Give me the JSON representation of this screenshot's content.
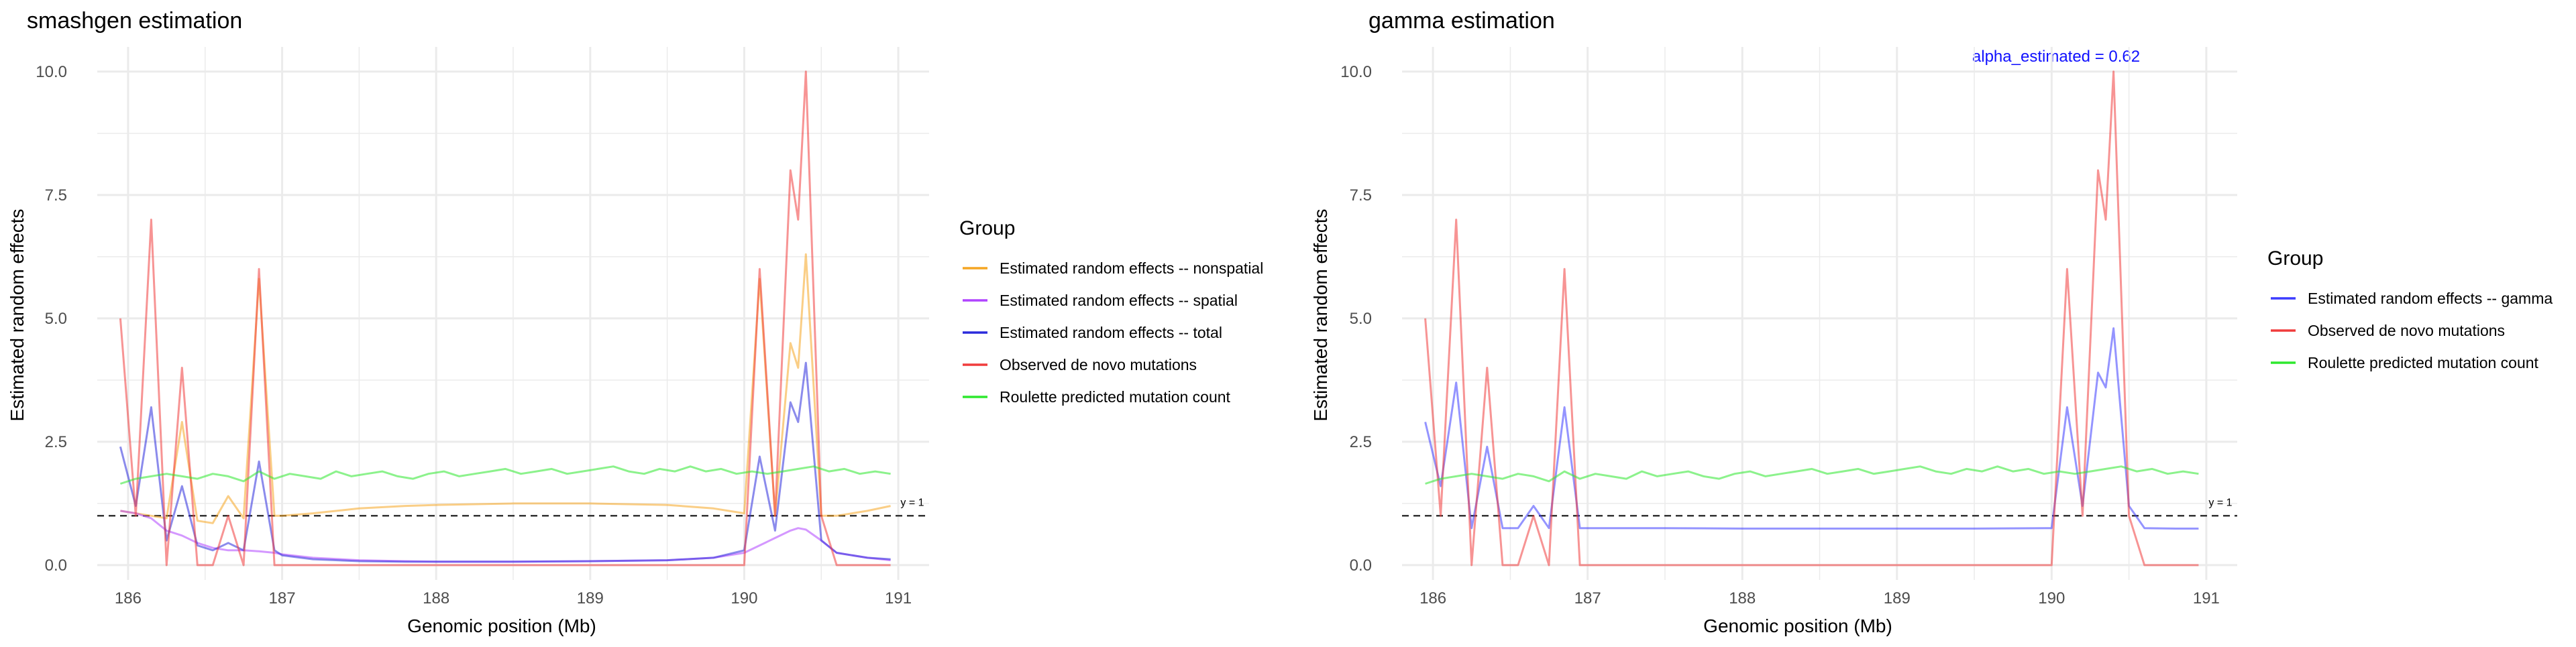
{
  "colors": {
    "nonspatial": "#f5a623",
    "spatial": "#b044ff",
    "total": "#2b2bdc",
    "observed": "#f03c3c",
    "roulette": "#2ee82e",
    "gamma": "#3c3cff",
    "annotation": "#1010ff",
    "refline": "#333333",
    "grid": "#ebebeb",
    "axis_text": "#4d4d4d"
  },
  "chart_data": [
    {
      "type": "line",
      "title": "smashgen estimation",
      "xlabel": "Genomic position (Mb)",
      "ylabel": "Estimated random effects",
      "xlim": [
        185.8,
        191.2
      ],
      "ylim": [
        -0.3,
        10.5
      ],
      "xticks": [
        "186",
        "187",
        "188",
        "189",
        "190",
        "191"
      ],
      "xtick_values": [
        186,
        187,
        188,
        189,
        190,
        191
      ],
      "yticks": [
        "0.0",
        "2.5",
        "5.0",
        "7.5",
        "10.0"
      ],
      "ytick_values": [
        0,
        2.5,
        5,
        7.5,
        10
      ],
      "grid": true,
      "hline": {
        "y": 1,
        "label": "y = 1"
      },
      "legend": {
        "title": "Group",
        "position": "right",
        "entries": [
          {
            "label": "Estimated random effects -- nonspatial",
            "color": "#f5a623"
          },
          {
            "label": "Estimated random effects -- spatial",
            "color": "#b044ff"
          },
          {
            "label": "Estimated random effects -- total",
            "color": "#2b2bdc"
          },
          {
            "label": "Observed de novo mutations",
            "color": "#f03c3c"
          },
          {
            "label": "Roulette predicted mutation count",
            "color": "#2ee82e"
          }
        ]
      },
      "series": [
        {
          "key": "nonspatial",
          "color": "#f5a623",
          "x": [
            185.95,
            186.05,
            186.15,
            186.25,
            186.35,
            186.45,
            186.55,
            186.65,
            186.75,
            186.85,
            186.95,
            187.0,
            187.2,
            187.5,
            187.8,
            188.0,
            188.5,
            189.0,
            189.5,
            189.8,
            190.0,
            190.1,
            190.2,
            190.3,
            190.35,
            190.4,
            190.5,
            190.6,
            190.8,
            190.95
          ],
          "y": [
            1.1,
            1.05,
            1.0,
            0.95,
            2.9,
            0.9,
            0.85,
            1.4,
            0.95,
            5.8,
            1.0,
            1.0,
            1.05,
            1.15,
            1.2,
            1.22,
            1.25,
            1.25,
            1.22,
            1.15,
            1.05,
            5.8,
            1.0,
            4.5,
            4.0,
            6.3,
            1.0,
            1.0,
            1.1,
            1.2
          ]
        },
        {
          "key": "spatial",
          "color": "#b044ff",
          "x": [
            185.95,
            186.05,
            186.15,
            186.25,
            186.35,
            186.45,
            186.55,
            186.65,
            186.75,
            186.85,
            186.95,
            187.0,
            187.2,
            187.5,
            187.8,
            188.0,
            188.5,
            189.0,
            189.5,
            189.8,
            190.0,
            190.1,
            190.2,
            190.3,
            190.35,
            190.4,
            190.5,
            190.6,
            190.8,
            190.95
          ],
          "y": [
            1.1,
            1.05,
            0.95,
            0.7,
            0.6,
            0.45,
            0.35,
            0.3,
            0.3,
            0.28,
            0.25,
            0.22,
            0.15,
            0.1,
            0.08,
            0.07,
            0.07,
            0.08,
            0.1,
            0.15,
            0.25,
            0.4,
            0.55,
            0.7,
            0.75,
            0.72,
            0.5,
            0.25,
            0.15,
            0.1
          ]
        },
        {
          "key": "total",
          "color": "#2b2bdc",
          "x": [
            185.95,
            186.05,
            186.15,
            186.25,
            186.35,
            186.45,
            186.55,
            186.65,
            186.75,
            186.85,
            186.95,
            187.0,
            187.2,
            187.5,
            187.8,
            188.0,
            188.5,
            189.0,
            189.5,
            189.8,
            190.0,
            190.1,
            190.2,
            190.3,
            190.35,
            190.4,
            190.5,
            190.6,
            190.8,
            190.95
          ],
          "y": [
            2.4,
            1.2,
            3.2,
            0.5,
            1.6,
            0.4,
            0.3,
            0.45,
            0.3,
            2.1,
            0.3,
            0.2,
            0.12,
            0.08,
            0.07,
            0.07,
            0.07,
            0.08,
            0.1,
            0.15,
            0.3,
            2.2,
            0.7,
            3.3,
            2.9,
            4.1,
            0.5,
            0.25,
            0.15,
            0.12
          ]
        },
        {
          "key": "observed",
          "color": "#f03c3c",
          "x": [
            185.95,
            186.05,
            186.15,
            186.25,
            186.35,
            186.45,
            186.55,
            186.65,
            186.75,
            186.85,
            186.95,
            187.0,
            187.5,
            188.0,
            188.5,
            189.0,
            189.5,
            190.0,
            190.1,
            190.2,
            190.3,
            190.35,
            190.4,
            190.5,
            190.6,
            190.8,
            190.95
          ],
          "y": [
            5,
            1,
            7,
            0,
            4,
            0,
            0,
            1,
            0,
            6,
            0,
            0,
            0,
            0,
            0,
            0,
            0,
            0,
            6,
            1,
            8,
            7,
            10,
            1,
            0,
            0,
            0
          ]
        },
        {
          "key": "roulette",
          "color": "#2ee82e",
          "x": [
            185.95,
            186.05,
            186.15,
            186.25,
            186.35,
            186.45,
            186.55,
            186.65,
            186.75,
            186.85,
            186.95,
            187.05,
            187.15,
            187.25,
            187.35,
            187.45,
            187.55,
            187.65,
            187.75,
            187.85,
            187.95,
            188.05,
            188.15,
            188.25,
            188.35,
            188.45,
            188.55,
            188.65,
            188.75,
            188.85,
            188.95,
            189.05,
            189.15,
            189.25,
            189.35,
            189.45,
            189.55,
            189.65,
            189.75,
            189.85,
            189.95,
            190.05,
            190.15,
            190.25,
            190.35,
            190.45,
            190.55,
            190.65,
            190.75,
            190.85,
            190.95
          ],
          "y": [
            1.65,
            1.75,
            1.8,
            1.85,
            1.8,
            1.75,
            1.85,
            1.8,
            1.7,
            1.9,
            1.75,
            1.85,
            1.8,
            1.75,
            1.9,
            1.8,
            1.85,
            1.9,
            1.8,
            1.75,
            1.85,
            1.9,
            1.8,
            1.85,
            1.9,
            1.95,
            1.85,
            1.9,
            1.95,
            1.85,
            1.9,
            1.95,
            2.0,
            1.9,
            1.85,
            1.95,
            1.9,
            2.0,
            1.9,
            1.95,
            1.85,
            1.9,
            1.85,
            1.9,
            1.95,
            2.0,
            1.9,
            1.95,
            1.85,
            1.9,
            1.85
          ]
        }
      ]
    },
    {
      "type": "line",
      "title": "gamma estimation",
      "annotation": "alpha_estimated = 0.62",
      "xlabel": "Genomic position (Mb)",
      "ylabel": "Estimated random effects",
      "xlim": [
        185.8,
        191.2
      ],
      "ylim": [
        -0.3,
        10.5
      ],
      "xticks": [
        "186",
        "187",
        "188",
        "189",
        "190",
        "191"
      ],
      "xtick_values": [
        186,
        187,
        188,
        189,
        190,
        191
      ],
      "yticks": [
        "0.0",
        "2.5",
        "5.0",
        "7.5",
        "10.0"
      ],
      "ytick_values": [
        0,
        2.5,
        5,
        7.5,
        10
      ],
      "grid": true,
      "hline": {
        "y": 1,
        "label": "y = 1"
      },
      "legend": {
        "title": "Group",
        "position": "right",
        "entries": [
          {
            "label": "Estimated random effects -- gamma",
            "color": "#3c3cff"
          },
          {
            "label": "Observed de novo mutations",
            "color": "#f03c3c"
          },
          {
            "label": "Roulette predicted mutation count",
            "color": "#2ee82e"
          }
        ]
      },
      "series": [
        {
          "key": "gamma",
          "color": "#3c3cff",
          "x": [
            185.95,
            186.05,
            186.15,
            186.25,
            186.35,
            186.45,
            186.55,
            186.65,
            186.75,
            186.85,
            186.95,
            187.0,
            187.5,
            188.0,
            188.5,
            189.0,
            189.5,
            190.0,
            190.1,
            190.2,
            190.3,
            190.35,
            190.4,
            190.5,
            190.6,
            190.8,
            190.95
          ],
          "y": [
            2.9,
            1.6,
            3.7,
            0.75,
            2.4,
            0.75,
            0.75,
            1.2,
            0.75,
            3.2,
            0.75,
            0.75,
            0.75,
            0.74,
            0.74,
            0.74,
            0.74,
            0.75,
            3.2,
            1.2,
            3.9,
            3.6,
            4.8,
            1.2,
            0.75,
            0.74,
            0.74
          ]
        },
        {
          "key": "observed",
          "color": "#f03c3c",
          "x": [
            185.95,
            186.05,
            186.15,
            186.25,
            186.35,
            186.45,
            186.55,
            186.65,
            186.75,
            186.85,
            186.95,
            187.0,
            187.5,
            188.0,
            188.5,
            189.0,
            189.5,
            190.0,
            190.1,
            190.2,
            190.3,
            190.35,
            190.4,
            190.5,
            190.6,
            190.8,
            190.95
          ],
          "y": [
            5,
            1,
            7,
            0,
            4,
            0,
            0,
            1,
            0,
            6,
            0,
            0,
            0,
            0,
            0,
            0,
            0,
            0,
            6,
            1,
            8,
            7,
            10,
            1,
            0,
            0,
            0
          ]
        },
        {
          "key": "roulette",
          "color": "#2ee82e",
          "x": [
            185.95,
            186.05,
            186.15,
            186.25,
            186.35,
            186.45,
            186.55,
            186.65,
            186.75,
            186.85,
            186.95,
            187.05,
            187.15,
            187.25,
            187.35,
            187.45,
            187.55,
            187.65,
            187.75,
            187.85,
            187.95,
            188.05,
            188.15,
            188.25,
            188.35,
            188.45,
            188.55,
            188.65,
            188.75,
            188.85,
            188.95,
            189.05,
            189.15,
            189.25,
            189.35,
            189.45,
            189.55,
            189.65,
            189.75,
            189.85,
            189.95,
            190.05,
            190.15,
            190.25,
            190.35,
            190.45,
            190.55,
            190.65,
            190.75,
            190.85,
            190.95
          ],
          "y": [
            1.65,
            1.75,
            1.8,
            1.85,
            1.8,
            1.75,
            1.85,
            1.8,
            1.7,
            1.9,
            1.75,
            1.85,
            1.8,
            1.75,
            1.9,
            1.8,
            1.85,
            1.9,
            1.8,
            1.75,
            1.85,
            1.9,
            1.8,
            1.85,
            1.9,
            1.95,
            1.85,
            1.9,
            1.95,
            1.85,
            1.9,
            1.95,
            2.0,
            1.9,
            1.85,
            1.95,
            1.9,
            2.0,
            1.9,
            1.95,
            1.85,
            1.9,
            1.85,
            1.9,
            1.95,
            2.0,
            1.9,
            1.95,
            1.85,
            1.9,
            1.85
          ]
        }
      ]
    }
  ]
}
